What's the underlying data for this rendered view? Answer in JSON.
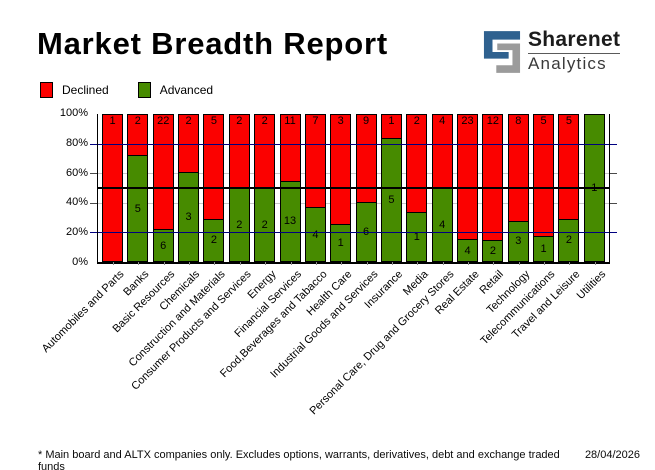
{
  "title": "Market Breadth Report",
  "logo": {
    "name": "Sharenet",
    "division": "Analytics",
    "blue": "#2f618f",
    "grey": "#9b9b9b"
  },
  "legend": [
    {
      "label": "Declined",
      "color": "#fb0100"
    },
    {
      "label": "Advanced",
      "color": "#478b00"
    }
  ],
  "footer": {
    "note": "* Main board and ALTX companies only. Excludes options, warrants, derivatives, debt and exchange traded funds",
    "date": "28/04/2026"
  },
  "chart_data": {
    "type": "bar",
    "stacked": true,
    "normalized": "percent",
    "title": "Market Breadth Report",
    "legend_position": "top-left",
    "categories": [
      "Automobiles and Parts",
      "Banks",
      "Basic Resources",
      "Chemicals",
      "Construction and Materials",
      "Consumer Products and Services",
      "Energy",
      "Financial Services",
      "Food,Beverages and Tabacco",
      "Health Care",
      "Industrial Goods and Services",
      "Insurance",
      "Media",
      "Personal Care, Drug and Grocery Stores",
      "Real Estate",
      "Retail",
      "Technology",
      "Telecommunications",
      "Travel and Leisure",
      "Utilities"
    ],
    "series": [
      {
        "name": "Declined",
        "color": "#fb0100",
        "values": [
          1,
          2,
          22,
          2,
          5,
          2,
          2,
          11,
          7,
          3,
          9,
          1,
          2,
          4,
          23,
          12,
          8,
          5,
          5,
          0
        ]
      },
      {
        "name": "Advanced",
        "color": "#478b00",
        "values": [
          0,
          5,
          6,
          3,
          2,
          2,
          2,
          13,
          4,
          1,
          6,
          5,
          1,
          4,
          4,
          2,
          3,
          1,
          2,
          1
        ]
      }
    ],
    "yticks": [
      "100%",
      "80%",
      "60%",
      "40%",
      "20%",
      "0%"
    ],
    "ylim": [
      0,
      100
    ],
    "gridlines": [
      {
        "y": 80,
        "color": "#000080",
        "front": true,
        "px": 1
      },
      {
        "y": 60,
        "color": "#c8c8c8",
        "front": false,
        "px": 1
      },
      {
        "y": 50,
        "color": "#000000",
        "front": true,
        "px": 2
      },
      {
        "y": 40,
        "color": "#c8c8c8",
        "front": false,
        "px": 1
      },
      {
        "y": 20,
        "color": "#000080",
        "front": true,
        "px": 1
      }
    ],
    "axis_ticks": [
      {
        "y": 80,
        "color": "#000080"
      },
      {
        "y": 60,
        "color": "#4a4a4a"
      },
      {
        "y": 40,
        "color": "#4a4a4a"
      },
      {
        "y": 20,
        "color": "#000080"
      }
    ]
  }
}
